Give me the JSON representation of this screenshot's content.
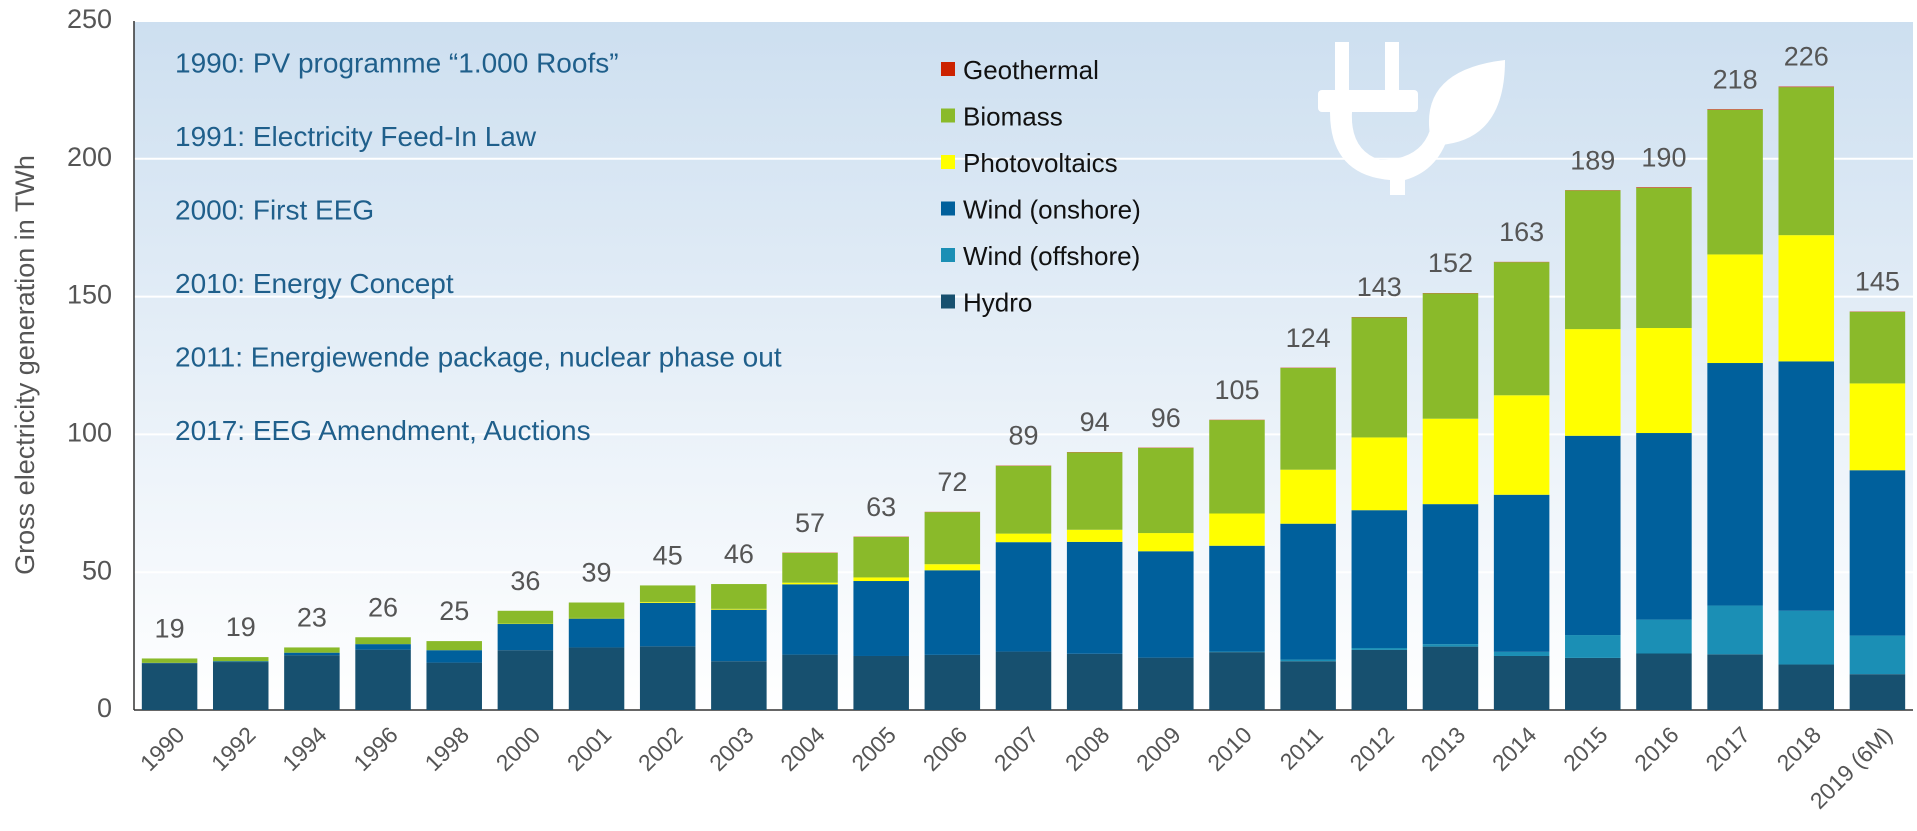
{
  "chart_data": {
    "type": "stacked_bar",
    "y_label": "Gross electricity generation in TWh",
    "annotations": [
      "1990: PV programme “1.000 Roofs”",
      "1991: Electricity Feed-In Law",
      "2000: First EEG",
      "2010: Energy Concept",
      "2011: Energiewende package, nuclear phase out",
      "2017: EEG Amendment, Auctions"
    ],
    "categories": [
      "1990",
      "1992",
      "1994",
      "1996",
      "1998",
      "2000",
      "2001",
      "2002",
      "2003",
      "2004",
      "2005",
      "2006",
      "2007",
      "2008",
      "2009",
      "2010",
      "2011",
      "2012",
      "2013",
      "2014",
      "2015",
      "2016",
      "2017",
      "2018",
      "2019 (6M)"
    ],
    "series": [
      {
        "name": "Hydro",
        "color": "#17506f",
        "values": [
          17,
          17.4,
          19.9,
          21.9,
          17.2,
          21.7,
          22.7,
          23.1,
          17.7,
          20.1,
          19.6,
          20,
          21.2,
          20.4,
          19,
          21,
          17.7,
          21.8,
          23,
          19.6,
          18.9,
          20.5,
          20.2,
          16.5,
          13
        ]
      },
      {
        "name": "Wind (offshore)",
        "color": "#1b8fb5",
        "values": [
          0,
          0,
          0,
          0,
          0,
          0,
          0,
          0,
          0,
          0,
          0,
          0,
          0,
          0,
          0,
          0.2,
          0.6,
          0.7,
          0.9,
          1.5,
          8.3,
          12.3,
          17.7,
          19.5,
          14
        ]
      },
      {
        "name": "Wind (onshore)",
        "color": "#00609c",
        "values": [
          0.1,
          0.3,
          0.9,
          2,
          4.5,
          9.5,
          10.5,
          15.8,
          18.7,
          25.5,
          27.2,
          30.7,
          39.7,
          40.6,
          38.6,
          38.4,
          49.3,
          50,
          50.8,
          57,
          72.3,
          67.7,
          88,
          90.5,
          60
        ]
      },
      {
        "name": "Photovoltaics",
        "color": "#ffff00",
        "values": [
          0,
          0,
          0,
          0,
          0,
          0.1,
          0.2,
          0.3,
          0.3,
          0.6,
          1.3,
          2.2,
          3.1,
          4.4,
          6.6,
          11.7,
          19.6,
          26.4,
          31,
          36.1,
          38.7,
          38.1,
          39.4,
          45.8,
          31.5
        ]
      },
      {
        "name": "Biomass",
        "color": "#8aba2a",
        "values": [
          1.6,
          1.5,
          1.9,
          2.5,
          3.3,
          4.7,
          5.6,
          6,
          9,
          10.8,
          14.7,
          18.9,
          24.6,
          28.1,
          30.9,
          33.9,
          36.9,
          43.6,
          45.5,
          48.3,
          50.3,
          50.9,
          52.5,
          53.7,
          26
        ]
      },
      {
        "name": "Geothermal",
        "color": "#cc2200",
        "values": [
          0,
          0,
          0,
          0,
          0,
          0,
          0,
          0,
          0,
          0.1,
          0.1,
          0.1,
          0.1,
          0.1,
          0.1,
          0.1,
          0.1,
          0.1,
          0.1,
          0.1,
          0.1,
          0.2,
          0.2,
          0.2,
          0.1
        ]
      }
    ],
    "totals": [
      19,
      19,
      23,
      26,
      25,
      36,
      39,
      45,
      46,
      57,
      63,
      72,
      89,
      94,
      96,
      105,
      124,
      143,
      152,
      163,
      189,
      190,
      218,
      226,
      145
    ],
    "ylim": [
      0,
      250
    ],
    "yticks": [
      0,
      50,
      100,
      150,
      200,
      250
    ],
    "grid": true
  }
}
